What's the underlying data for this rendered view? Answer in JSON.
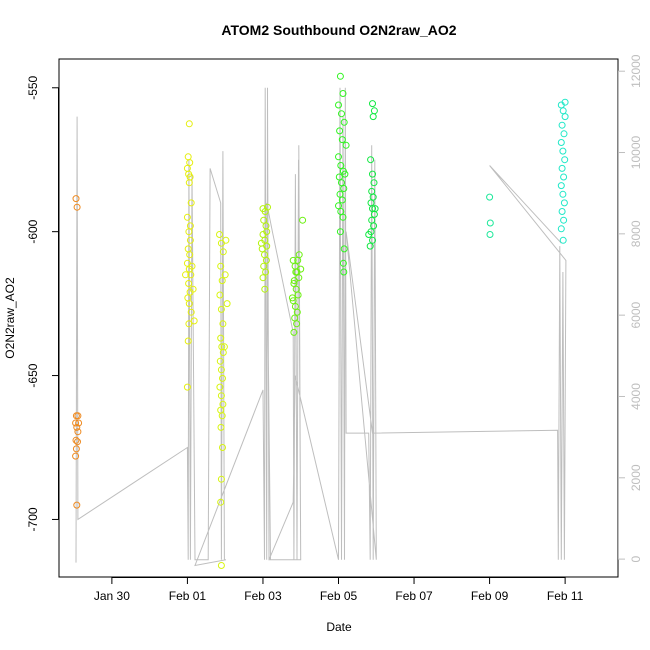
{
  "chart_data": {
    "type": "scatter",
    "title": "ATOM2 Southbound O2N2raw_AO2",
    "xlabel": "Date",
    "ylabel": "O2N2raw_AO2",
    "x_ticks": [
      {
        "value": "Jan 30",
        "day": 30
      },
      {
        "value": "Feb 01",
        "day": 32
      },
      {
        "value": "Feb 03",
        "day": 34
      },
      {
        "value": "Feb 05",
        "day": 36
      },
      {
        "value": "Feb 07",
        "day": 38
      },
      {
        "value": "Feb 09",
        "day": 40
      },
      {
        "value": "Feb 11",
        "day": 42
      }
    ],
    "xlim_day": [
      28.6,
      43.4
    ],
    "ylim": [
      -720,
      -540
    ],
    "y_ticks": [
      -700,
      -650,
      -600,
      -550
    ],
    "y2_ticks": [
      0,
      2000,
      4000,
      6000,
      8000,
      10000,
      12000
    ],
    "y2lim": [
      -440,
      12300
    ],
    "grid": false,
    "point_style": "open-circle",
    "series": [
      {
        "color": "#ee8a20",
        "points": [
          [
            29.05,
            -588.5
          ],
          [
            29.08,
            -591.5
          ],
          [
            29.06,
            -664
          ],
          [
            29.1,
            -664
          ],
          [
            29.04,
            -666.5
          ],
          [
            29.12,
            -666.5
          ],
          [
            29.07,
            -668
          ],
          [
            29.1,
            -669.5
          ],
          [
            29.05,
            -672.5
          ],
          [
            29.09,
            -673
          ],
          [
            29.06,
            -675.5
          ],
          [
            29.04,
            -678
          ],
          [
            29.07,
            -695
          ]
        ]
      },
      {
        "color": "#e6ef10",
        "points": [
          [
            32.05,
            -562.5
          ],
          [
            32.02,
            -574
          ],
          [
            32.06,
            -576
          ],
          [
            32.0,
            -578
          ],
          [
            32.03,
            -580
          ],
          [
            32.07,
            -581
          ],
          [
            32.05,
            -583
          ],
          [
            32.1,
            -590
          ],
          [
            32.0,
            -595
          ],
          [
            32.04,
            -600
          ],
          [
            32.08,
            -603
          ],
          [
            32.02,
            -606
          ],
          [
            32.06,
            -608
          ],
          [
            32.0,
            -611
          ],
          [
            32.05,
            -613
          ],
          [
            32.09,
            -615
          ],
          [
            32.03,
            -618
          ],
          [
            32.07,
            -621
          ],
          [
            32.01,
            -623
          ],
          [
            32.05,
            -625
          ],
          [
            32.1,
            -628
          ],
          [
            32.04,
            -632
          ],
          [
            32.02,
            -638
          ],
          [
            32.0,
            -654
          ],
          [
            31.95,
            -615
          ],
          [
            32.12,
            -612
          ],
          [
            32.15,
            -620
          ],
          [
            32.18,
            -631
          ],
          [
            32.08,
            -598
          ]
        ]
      },
      {
        "color": "#d8f510",
        "points": [
          [
            32.85,
            -601
          ],
          [
            32.9,
            -604
          ],
          [
            32.95,
            -607
          ],
          [
            32.88,
            -612
          ],
          [
            32.92,
            -617
          ],
          [
            32.86,
            -622
          ],
          [
            32.9,
            -627
          ],
          [
            32.94,
            -632
          ],
          [
            32.88,
            -637
          ],
          [
            32.91,
            -640
          ],
          [
            32.95,
            -642
          ],
          [
            32.87,
            -645
          ],
          [
            32.9,
            -648
          ],
          [
            32.93,
            -651
          ],
          [
            32.86,
            -654
          ],
          [
            32.9,
            -657
          ],
          [
            32.94,
            -660
          ],
          [
            32.88,
            -662
          ],
          [
            32.92,
            -664
          ],
          [
            32.89,
            -668
          ],
          [
            32.93,
            -675
          ],
          [
            32.9,
            -686
          ],
          [
            32.88,
            -694
          ],
          [
            32.9,
            -716
          ],
          [
            33.0,
            -615
          ],
          [
            33.05,
            -625
          ],
          [
            32.98,
            -640
          ],
          [
            33.02,
            -603
          ]
        ]
      },
      {
        "color": "#b4f20c",
        "points": [
          [
            34.0,
            -592
          ],
          [
            34.06,
            -593
          ],
          [
            34.12,
            -591.5
          ],
          [
            34.02,
            -596
          ],
          [
            34.08,
            -598
          ],
          [
            34.0,
            -601
          ],
          [
            34.05,
            -603
          ],
          [
            34.1,
            -605
          ],
          [
            33.98,
            -606
          ],
          [
            34.04,
            -608
          ],
          [
            34.09,
            -610
          ],
          [
            34.02,
            -612
          ],
          [
            34.07,
            -614
          ],
          [
            34.0,
            -616
          ],
          [
            34.05,
            -620
          ],
          [
            34.1,
            -600
          ],
          [
            33.96,
            -604
          ]
        ]
      },
      {
        "color": "#6cf010",
        "points": [
          [
            34.8,
            -610
          ],
          [
            34.85,
            -612
          ],
          [
            34.9,
            -614
          ],
          [
            34.95,
            -616
          ],
          [
            34.82,
            -618
          ],
          [
            34.88,
            -620
          ],
          [
            34.93,
            -622
          ],
          [
            34.8,
            -624
          ],
          [
            34.86,
            -626
          ],
          [
            34.91,
            -628
          ],
          [
            34.84,
            -630
          ],
          [
            34.89,
            -632
          ],
          [
            34.82,
            -635
          ],
          [
            34.87,
            -614
          ],
          [
            34.92,
            -610
          ],
          [
            34.96,
            -608
          ],
          [
            35.0,
            -613
          ],
          [
            35.05,
            -596
          ],
          [
            34.78,
            -623
          ],
          [
            34.83,
            -617
          ]
        ]
      },
      {
        "color": "#30f520",
        "points": [
          [
            36.05,
            -546
          ],
          [
            36.12,
            -552
          ],
          [
            36.0,
            -556
          ],
          [
            36.08,
            -559
          ],
          [
            36.15,
            -562
          ],
          [
            36.03,
            -565
          ],
          [
            36.1,
            -568
          ],
          [
            36.0,
            -574
          ],
          [
            36.06,
            -577
          ],
          [
            36.13,
            -579
          ],
          [
            36.02,
            -581
          ],
          [
            36.08,
            -583
          ],
          [
            36.14,
            -585
          ],
          [
            36.04,
            -587
          ],
          [
            36.1,
            -589
          ],
          [
            36.0,
            -591
          ],
          [
            36.06,
            -593
          ],
          [
            36.12,
            -595
          ],
          [
            36.05,
            -600
          ],
          [
            36.15,
            -606
          ],
          [
            36.13,
            -611
          ],
          [
            36.14,
            -614
          ],
          [
            36.17,
            -580
          ],
          [
            36.2,
            -570
          ]
        ]
      },
      {
        "color": "#10e840",
        "points": [
          [
            36.9,
            -555.5
          ],
          [
            36.95,
            -558
          ],
          [
            36.92,
            -560
          ],
          [
            36.85,
            -575
          ],
          [
            36.9,
            -580
          ],
          [
            36.94,
            -583
          ],
          [
            36.88,
            -586
          ],
          [
            36.92,
            -588
          ],
          [
            36.86,
            -590
          ],
          [
            36.9,
            -592
          ],
          [
            36.95,
            -594
          ],
          [
            36.88,
            -596
          ],
          [
            36.93,
            -598
          ],
          [
            36.86,
            -600
          ],
          [
            36.9,
            -603
          ],
          [
            36.84,
            -605
          ],
          [
            36.97,
            -592
          ],
          [
            36.8,
            -601
          ]
        ]
      },
      {
        "color": "#1ce89a",
        "points": [
          [
            40.0,
            -588
          ],
          [
            40.02,
            -597
          ],
          [
            40.01,
            -601
          ]
        ]
      },
      {
        "color": "#20e8c8",
        "points": [
          [
            41.9,
            -556
          ],
          [
            41.95,
            -558
          ],
          [
            42.0,
            -560
          ],
          [
            41.92,
            -563
          ],
          [
            41.97,
            -566
          ],
          [
            41.9,
            -569
          ],
          [
            41.94,
            -572
          ],
          [
            41.99,
            -575
          ],
          [
            41.92,
            -578
          ],
          [
            41.96,
            -581
          ],
          [
            41.9,
            -584
          ],
          [
            41.94,
            -587
          ],
          [
            41.98,
            -590
          ],
          [
            41.92,
            -593
          ],
          [
            41.96,
            -596
          ],
          [
            41.9,
            -599
          ],
          [
            41.95,
            -603
          ],
          [
            42.0,
            -555
          ]
        ]
      }
    ],
    "track_right_axis": [
      [
        29.05,
        -715
      ],
      [
        29.08,
        -560
      ],
      [
        29.1,
        -700
      ],
      [
        32.0,
        -675
      ],
      [
        32.02,
        -714
      ],
      [
        32.04,
        -575
      ],
      [
        32.08,
        -714
      ],
      [
        32.12,
        -580
      ],
      [
        32.2,
        -714
      ],
      [
        32.35,
        -714
      ],
      [
        32.55,
        -714
      ],
      [
        32.6,
        -578
      ],
      [
        32.88,
        -590
      ],
      [
        32.9,
        -714
      ],
      [
        32.94,
        -572
      ],
      [
        32.98,
        -714
      ],
      [
        33.02,
        -714
      ],
      [
        32.2,
        -716
      ],
      [
        34.0,
        -655
      ],
      [
        34.04,
        -714
      ],
      [
        34.06,
        -550
      ],
      [
        34.1,
        -714
      ],
      [
        34.12,
        -550
      ],
      [
        34.16,
        -714
      ],
      [
        34.2,
        -714
      ],
      [
        34.1,
        -590
      ],
      [
        34.25,
        -600
      ],
      [
        34.8,
        -635
      ],
      [
        34.82,
        -714
      ],
      [
        34.86,
        -580
      ],
      [
        34.9,
        -714
      ],
      [
        34.94,
        -575
      ],
      [
        35.0,
        -714
      ],
      [
        34.95,
        -570
      ],
      [
        35.0,
        -714
      ],
      [
        34.16,
        -714
      ],
      [
        34.8,
        -694
      ],
      [
        34.85,
        -650
      ],
      [
        36.0,
        -714
      ],
      [
        36.04,
        -550
      ],
      [
        36.08,
        -714
      ],
      [
        36.12,
        -560
      ],
      [
        36.16,
        -714
      ],
      [
        36.18,
        -550
      ],
      [
        36.2,
        -670
      ],
      [
        36.8,
        -670
      ],
      [
        36.84,
        -714
      ],
      [
        36.88,
        -570
      ],
      [
        36.92,
        -714
      ],
      [
        36.96,
        -575
      ],
      [
        37.0,
        -714
      ],
      [
        36.2,
        -600
      ],
      [
        36.9,
        -670
      ],
      [
        41.8,
        -669
      ],
      [
        41.82,
        -714
      ],
      [
        41.86,
        -605
      ],
      [
        41.9,
        -714
      ],
      [
        41.94,
        -614
      ],
      [
        41.98,
        -714
      ],
      [
        42.02,
        -610
      ],
      [
        40.0,
        -577
      ],
      [
        41.9,
        -604
      ]
    ]
  }
}
